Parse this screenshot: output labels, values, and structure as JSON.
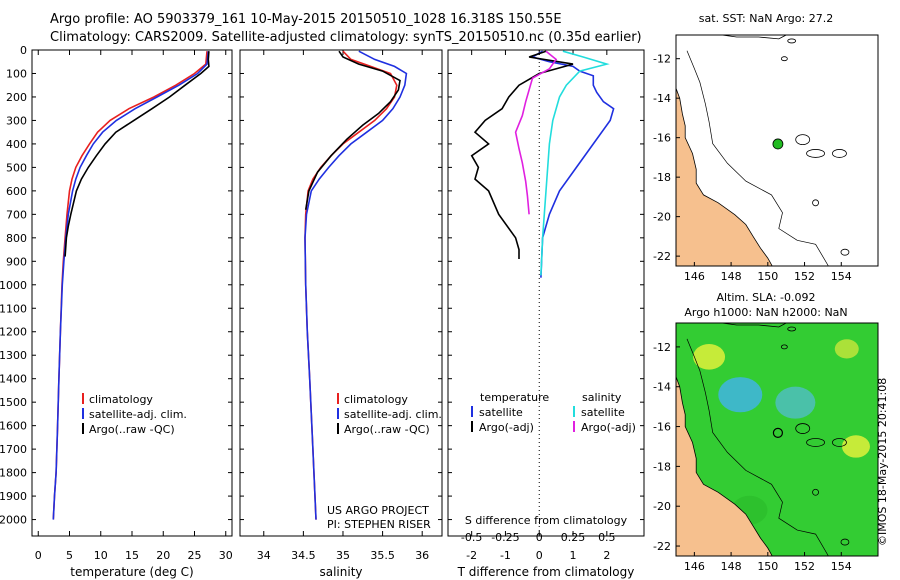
{
  "header": {
    "line1": "Argo profile: AO 5903379_161 10-May-2015 20150510_1028 16.318S 150.55E",
    "line2": "Climatology: CARS2009. Satellite-adjusted climatology: synTS_20150510.nc (0.35d earlier)"
  },
  "credit": {
    "project": "US ARGO PROJECT",
    "pi": "PI: STEPHEN RISER",
    "imos": "©IMOS 18-May-2015 20:41:08"
  },
  "colors": {
    "climatology": "#e8201f",
    "satellite": "#1f30e0",
    "argo": "#000000",
    "sat_salinity": "#22dddd",
    "argo_salinity": "#e020e0",
    "land": "#f6c08e",
    "sla_field": "#33cc33",
    "float_marker": "#22bb22"
  },
  "map1": {
    "title": "sat. SST: NaN Argo: 27.2",
    "icon": "float-position-marker"
  },
  "map2": {
    "title_line1": "Altim. SLA: -0.092",
    "title_line2": "Argo h1000: NaN h2000: NaN",
    "icon": "float-position-marker"
  },
  "chart_data": [
    {
      "type": "line",
      "name": "temperature-profile",
      "xlabel": "temperature (deg C)",
      "ylabel": "",
      "xlim": [
        -1,
        31
      ],
      "ylim": [
        2070,
        0
      ],
      "xticks": [
        "0",
        "5",
        "10",
        "15",
        "20",
        "25",
        "30"
      ],
      "yticks": [
        "0",
        "100",
        "200",
        "300",
        "400",
        "500",
        "600",
        "700",
        "800",
        "900",
        "1000",
        "1100",
        "1200",
        "1300",
        "1400",
        "1500",
        "1600",
        "1700",
        "1800",
        "1900",
        "2000"
      ],
      "legend": {
        "position": "bottom-center",
        "entries": [
          "climatology",
          "satellite-adj. clim.",
          "Argo(..raw -QC)"
        ]
      },
      "series": [
        {
          "name": "climatology",
          "color_key": "climatology",
          "x": [
            27.0,
            26.8,
            25.0,
            22.0,
            18.5,
            14.5,
            11.5,
            9.5,
            8.2,
            7.0,
            6.0,
            5.4,
            5.0,
            4.6,
            4.3,
            4.0,
            3.8,
            3.55,
            3.3,
            3.1,
            2.85,
            2.6,
            2.4
          ],
          "y": [
            5,
            60,
            100,
            150,
            200,
            250,
            300,
            350,
            400,
            450,
            500,
            550,
            600,
            700,
            800,
            900,
            1000,
            1200,
            1400,
            1600,
            1800,
            1900,
            2000
          ]
        },
        {
          "name": "satellite-adj. clim.",
          "color_key": "satellite",
          "x": [
            27.2,
            27.0,
            25.5,
            22.5,
            19.0,
            15.5,
            12.5,
            10.3,
            8.8,
            7.7,
            6.7,
            6.0,
            5.5,
            4.8,
            4.4,
            4.1,
            3.85,
            3.55,
            3.3,
            3.1,
            2.85,
            2.6,
            2.4
          ],
          "y": [
            5,
            60,
            100,
            150,
            200,
            250,
            300,
            350,
            400,
            450,
            500,
            550,
            600,
            700,
            800,
            900,
            1000,
            1200,
            1400,
            1600,
            1800,
            1900,
            2000
          ]
        },
        {
          "name": "Argo(..raw -QC)",
          "color_key": "argo",
          "x": [
            27.3,
            27.2,
            27.3,
            26.0,
            23.5,
            21.0,
            18.2,
            15.3,
            12.4,
            10.7,
            9.3,
            8.0,
            6.9,
            6.1,
            5.2,
            4.8,
            4.5,
            4.3
          ],
          "y": [
            5,
            40,
            70,
            100,
            150,
            200,
            250,
            300,
            350,
            400,
            450,
            500,
            550,
            600,
            700,
            750,
            800,
            880
          ]
        }
      ]
    },
    {
      "type": "line",
      "name": "salinity-profile",
      "xlabel": "salinity",
      "ylabel": "",
      "xlim": [
        33.7,
        36.25
      ],
      "ylim": [
        2070,
        0
      ],
      "xticks": [
        "34",
        "34.5",
        "35",
        "35.5",
        "36"
      ],
      "legend": {
        "position": "bottom-center",
        "entries": [
          "climatology",
          "satellite-adj. clim.",
          "Argo(..raw -QC)"
        ]
      },
      "series": [
        {
          "name": "climatology",
          "color_key": "climatology",
          "x": [
            35.0,
            35.1,
            35.35,
            35.6,
            35.68,
            35.65,
            35.55,
            35.4,
            35.2,
            35.0,
            34.85,
            34.72,
            34.62,
            34.56,
            34.53,
            34.52,
            34.53,
            34.55,
            34.58,
            34.62,
            34.66
          ],
          "y": [
            5,
            40,
            70,
            100,
            150,
            200,
            250,
            300,
            350,
            400,
            450,
            500,
            550,
            600,
            700,
            800,
            1000,
            1200,
            1400,
            1700,
            2000
          ]
        },
        {
          "name": "satellite-adj. clim.",
          "color_key": "satellite",
          "x": [
            35.2,
            35.4,
            35.65,
            35.8,
            35.78,
            35.72,
            35.63,
            35.5,
            35.3,
            35.1,
            34.95,
            34.82,
            34.7,
            34.6,
            34.54,
            34.52,
            34.53,
            34.55,
            34.58,
            34.62,
            34.66
          ],
          "y": [
            5,
            40,
            70,
            100,
            150,
            200,
            250,
            300,
            350,
            400,
            450,
            500,
            550,
            600,
            700,
            800,
            1000,
            1200,
            1400,
            1700,
            2000
          ]
        },
        {
          "name": "Argo(..raw -QC)",
          "color_key": "argo",
          "x": [
            34.95,
            35.0,
            35.2,
            35.5,
            35.72,
            35.7,
            35.6,
            35.45,
            35.25,
            35.05,
            34.85,
            34.68,
            34.57,
            34.53
          ],
          "y": [
            5,
            30,
            60,
            90,
            130,
            170,
            220,
            270,
            320,
            380,
            450,
            520,
            600,
            680
          ]
        }
      ]
    },
    {
      "type": "line",
      "name": "difference-from-climatology",
      "xlabel": "T difference from climatology",
      "xlabel_top": "S difference from climatology",
      "xlim": [
        -2.7,
        3.1
      ],
      "ylim": [
        2070,
        0
      ],
      "xticks": [
        "-2",
        "-1",
        "0",
        "1",
        "2"
      ],
      "xticks_top": [
        "-0.5",
        "-0.25",
        "0",
        "0.25",
        "0.5"
      ],
      "legend": {
        "position": "bottom-center",
        "titles": [
          "temperature",
          "salinity"
        ],
        "entries": [
          "satellite",
          "Argo(-adj)",
          "satellite",
          "Argo(-adj)"
        ]
      },
      "series": [
        {
          "name": "satellite",
          "group": "temperature",
          "color_key": "satellite",
          "x": [
            0.1,
            -0.2,
            0.3,
            1.0,
            1.2,
            1.6,
            1.6,
            1.7,
            1.9,
            2.2,
            2.1,
            1.6,
            1.1,
            0.6,
            0.3,
            0.1,
            0.05
          ],
          "y": [
            5,
            30,
            50,
            70,
            90,
            110,
            150,
            180,
            220,
            250,
            300,
            400,
            500,
            600,
            700,
            800,
            970
          ]
        },
        {
          "name": "Argo(-adj)",
          "group": "temperature",
          "color_key": "argo",
          "x": [
            0.2,
            -0.3,
            1.0,
            0.0,
            -0.6,
            -0.9,
            -1.1,
            -1.6,
            -1.9,
            -1.5,
            -2.0,
            -1.8,
            -1.9,
            -1.5,
            -1.2,
            -0.7,
            -0.6,
            -0.6
          ],
          "y": [
            5,
            30,
            60,
            100,
            150,
            200,
            250,
            300,
            350,
            400,
            450,
            500,
            550,
            600,
            700,
            800,
            850,
            890
          ]
        },
        {
          "name": "satellite",
          "group": "salinity",
          "color_key": "sat_salinity",
          "x": [
            0.7,
            1.3,
            2.0,
            1.2,
            0.8,
            0.6,
            0.4,
            0.3,
            0.25,
            0.2,
            0.15,
            0.1,
            0.05
          ],
          "y": [
            5,
            30,
            60,
            90,
            150,
            200,
            300,
            400,
            500,
            600,
            700,
            800,
            960
          ]
        },
        {
          "name": "Argo(-adj)",
          "group": "salinity",
          "color_key": "argo_salinity",
          "x": [
            0.2,
            0.5,
            0.3,
            -0.2,
            -0.3,
            -0.4,
            -0.5,
            -0.7,
            -0.6,
            -0.5,
            -0.4,
            -0.35,
            -0.3
          ],
          "y": [
            5,
            40,
            80,
            120,
            170,
            220,
            280,
            350,
            420,
            480,
            560,
            620,
            700
          ]
        }
      ]
    },
    {
      "type": "scatter",
      "name": "sst-map",
      "title": "sat. SST: NaN Argo: 27.2",
      "xlim": [
        145,
        156
      ],
      "ylim": [
        -22.5,
        -10.8
      ],
      "xticks": [
        "146",
        "148",
        "150",
        "152",
        "154"
      ],
      "yticks": [
        "-12",
        "-14",
        "-16",
        "-18",
        "-20",
        "-22"
      ],
      "points": [
        {
          "label": "Argo float",
          "x": 150.55,
          "y": -16.318
        }
      ]
    },
    {
      "type": "heatmap",
      "name": "sla-map",
      "title": "Altim. SLA: -0.092",
      "subtitle": "Argo h1000: NaN h2000: NaN",
      "xlim": [
        145,
        156
      ],
      "ylim": [
        -22.5,
        -10.8
      ],
      "xticks": [
        "146",
        "148",
        "150",
        "152",
        "154"
      ],
      "yticks": [
        "-12",
        "-14",
        "-16",
        "-18",
        "-20",
        "-22"
      ],
      "points": [
        {
          "label": "Argo float",
          "x": 150.55,
          "y": -16.318
        }
      ]
    }
  ]
}
